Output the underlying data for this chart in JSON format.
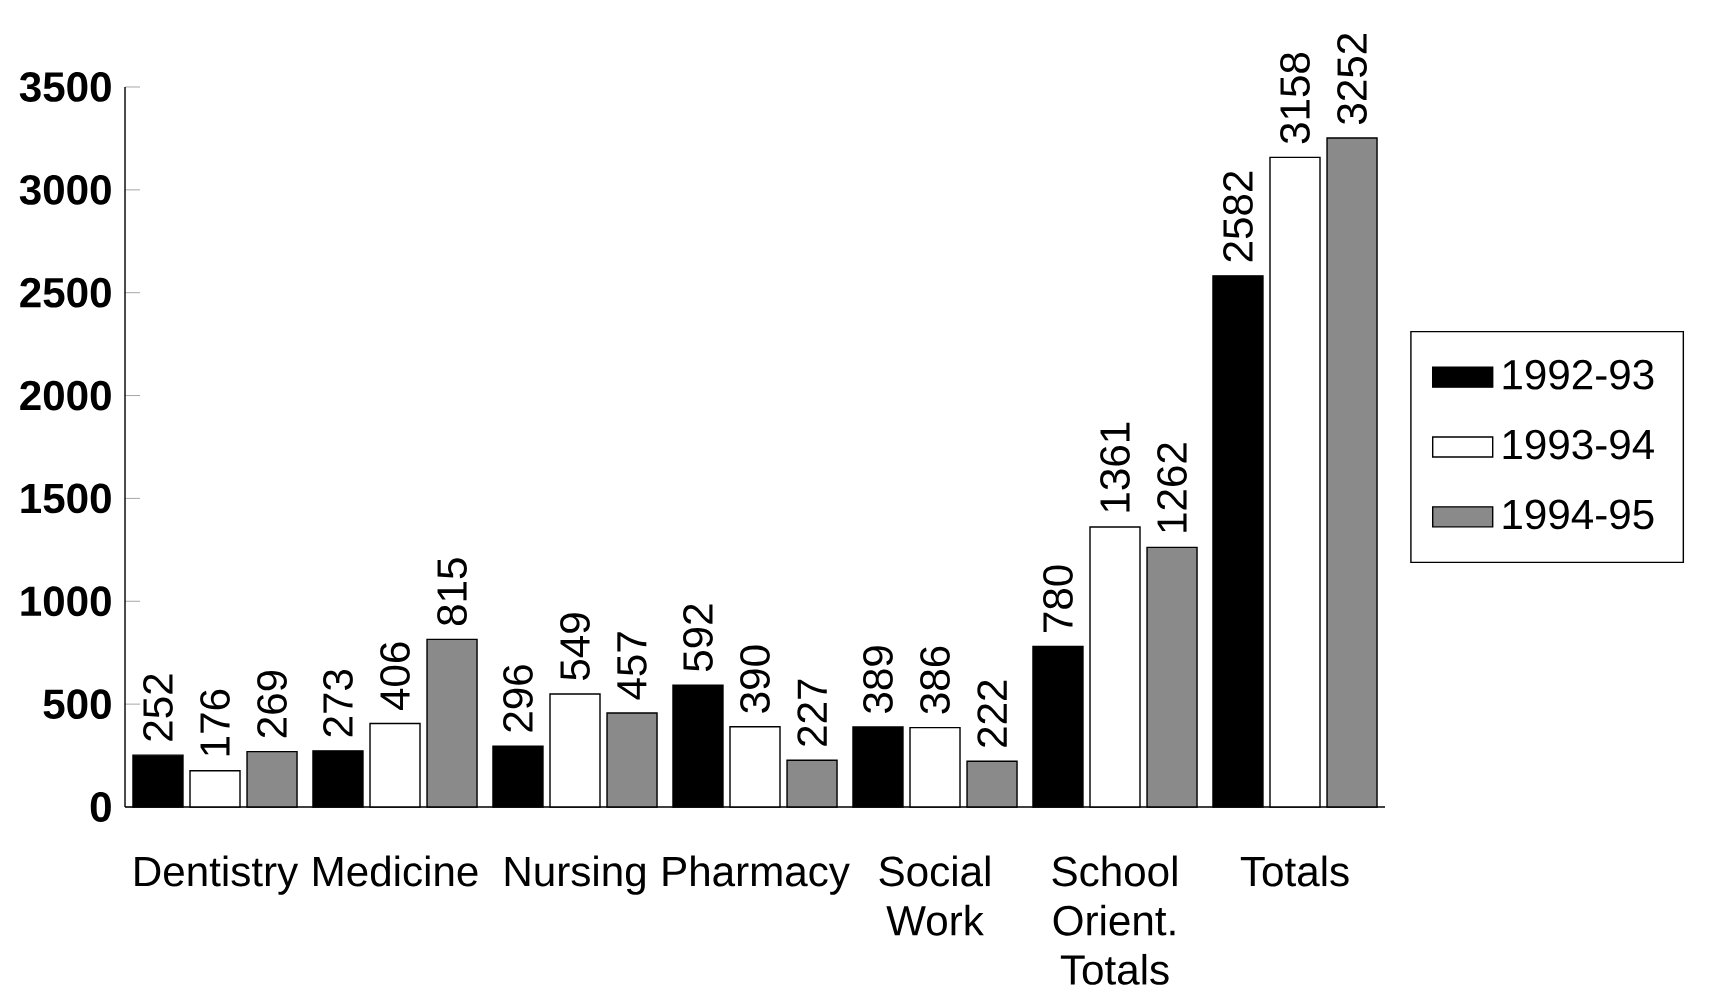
{
  "chart_data": {
    "type": "bar",
    "categories": [
      "Dentistry",
      "Medicine",
      "Nursing",
      "Pharmacy",
      "Social Work",
      "School Orient. Totals",
      "Totals"
    ],
    "series": [
      {
        "name": "1992-93",
        "color": "#000000",
        "values": [
          252,
          273,
          296,
          592,
          389,
          780,
          2582
        ]
      },
      {
        "name": "1993-94",
        "color": "#ffffff",
        "values": [
          176,
          406,
          549,
          390,
          386,
          1361,
          3158
        ]
      },
      {
        "name": "1994-95",
        "color": "#8a8a8a",
        "values": [
          269,
          815,
          457,
          227,
          222,
          1262,
          3252
        ]
      }
    ],
    "ylim": [
      0,
      3500
    ],
    "yticks": [
      0,
      500,
      1000,
      1500,
      2000,
      2500,
      3000,
      3500
    ],
    "data_labels": true,
    "legend": "right",
    "grid": false
  }
}
